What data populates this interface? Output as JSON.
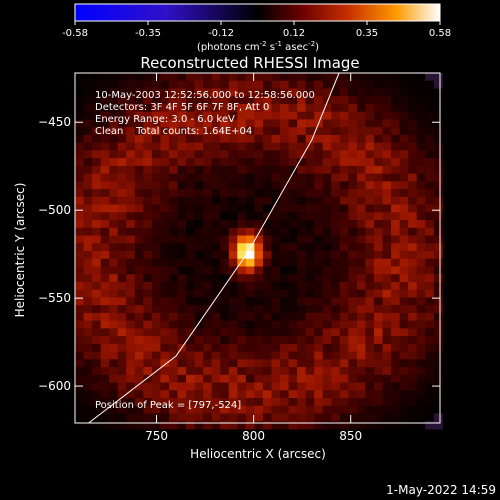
{
  "chart_data": {
    "type": "heatmap",
    "title": "Reconstructed RHESSI Image",
    "xlabel": "Heliocentric X (arcsec)",
    "ylabel": "Heliocentric Y (arcsec)",
    "xlim": [
      708,
      896
    ],
    "ylim": [
      -621,
      -422
    ],
    "x_ticks": [
      750,
      800,
      850
    ],
    "y_ticks": [
      -450,
      -500,
      -550,
      -600
    ],
    "colorbar": {
      "min": -0.58,
      "max": 0.58,
      "ticks": [
        "-0.58",
        "-0.35",
        "-0.12",
        "0.12",
        "0.35",
        "0.58"
      ],
      "unit_label": "(photons cm",
      "unit_sup1": "-2",
      "unit_mid": " s",
      "unit_sup2": "-1",
      "unit_end": " asec",
      "unit_sup3": "-2",
      "unit_close": ")"
    },
    "peak": {
      "x": 797,
      "y": -524,
      "value": 0.58
    },
    "ring": {
      "center_x": 797,
      "center_y": -524,
      "radius": 80,
      "level": 0.14
    },
    "limb_line": {
      "points": [
        [
          715,
          -621
        ],
        [
          760,
          -583
        ],
        [
          797,
          -524
        ],
        [
          830,
          -460
        ],
        [
          844,
          -422
        ]
      ]
    },
    "annotations": {
      "line1": "10-May-2003 12:52:56.000 to 12:58:56.000",
      "line2": "Detectors: 3F 4F 5F 6F 7F 8F, Att 0",
      "line3": "Energy Range: 3.0 - 6.0 keV",
      "line4": "Clean    Total counts: 1.64E+04",
      "peak_text": "Position of Peak = [797,-524]"
    }
  },
  "footer": {
    "timestamp": "1-May-2022 14:59"
  },
  "colors": {
    "background": "#000000",
    "axes": "#ffffff",
    "limb_line": "#ffffff"
  }
}
